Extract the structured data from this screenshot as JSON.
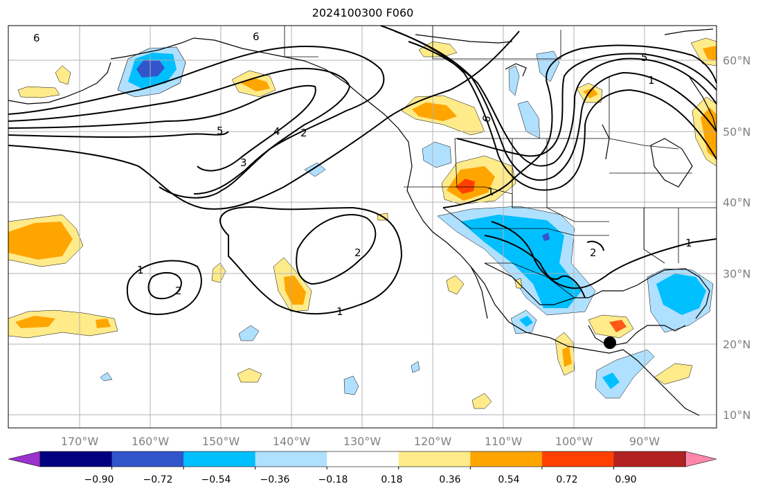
{
  "title": "2024100300 F060",
  "map": {
    "lon_labels": [
      "170°W",
      "160°W",
      "150°W",
      "140°W",
      "130°W",
      "120°W",
      "110°W",
      "100°W",
      "90°W"
    ],
    "lat_labels": [
      "60°N",
      "50°N",
      "40°N",
      "30°N",
      "20°N",
      "10°N"
    ],
    "contour_labels": [
      "6",
      "6",
      "6",
      "5",
      "5",
      "4",
      "3",
      "2",
      "2",
      "2",
      "2",
      "1",
      "1",
      "1",
      "1",
      "1"
    ],
    "marker": "black-dot"
  },
  "colorbar": {
    "tick_labels": [
      "−0.90",
      "−0.72",
      "−0.54",
      "−0.36",
      "−0.18",
      "0.18",
      "0.36",
      "0.54",
      "0.72",
      "0.90"
    ],
    "colors": [
      "#9933cc",
      "#000080",
      "#3355cc",
      "#00bfff",
      "#b0e0ff",
      "#ffffff",
      "#ffeb8a",
      "#ffa500",
      "#ff4000",
      "#b22222",
      "#ff88aa"
    ],
    "extend": "both"
  }
}
